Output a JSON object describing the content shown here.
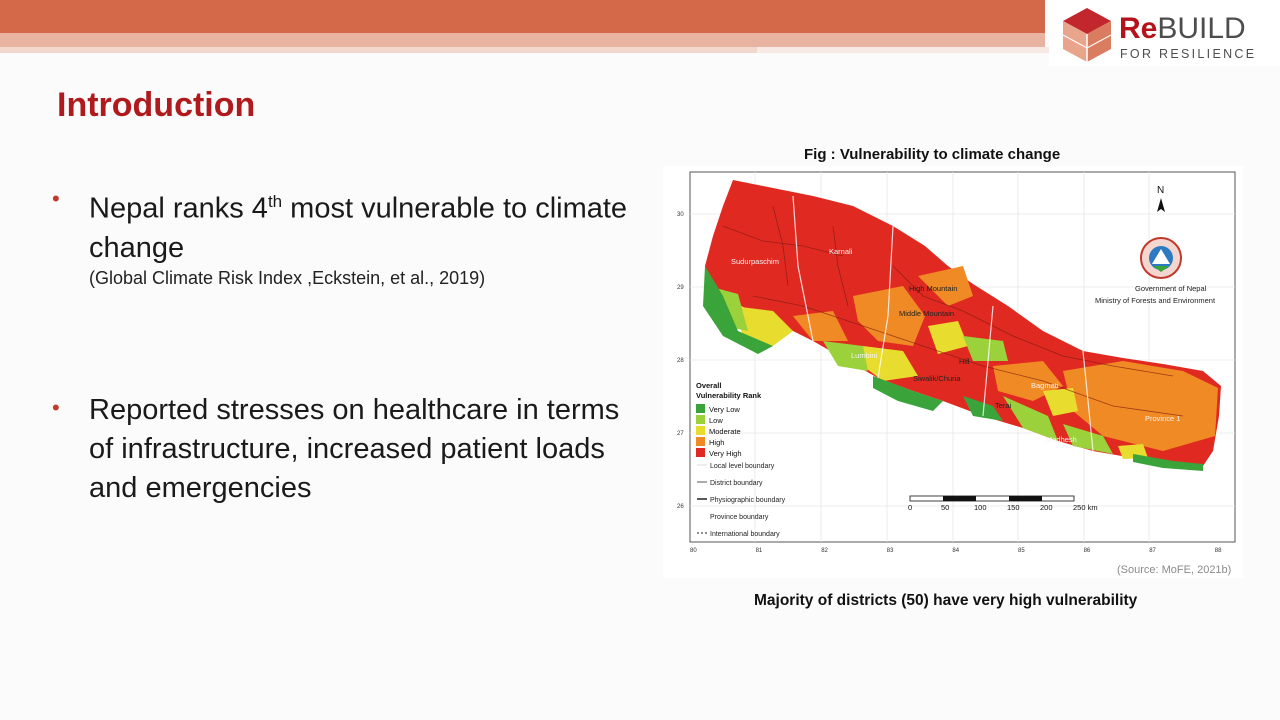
{
  "logo": {
    "re": "Re",
    "build": "BUILD",
    "sub": "FOR RESILIENCE"
  },
  "title": "Introduction",
  "bullets": [
    {
      "text_pre": "Nepal ranks 4",
      "sup": "th",
      "text_post": " most vulnerable to climate change",
      "sub": "(Global Climate Risk Index ,Eckstein, et al., 2019)"
    },
    {
      "text": "Reported stresses on healthcare in terms of infrastructure, increased patient loads and emergencies"
    }
  ],
  "figure": {
    "caption": "Fig : Vulnerability to  climate change",
    "source": "(Source: MoFE, 2021b)",
    "bottom_caption": "Majority of districts (50) have very high vulnerability",
    "north": "N",
    "gov_line1": "Government of Nepal",
    "gov_line2": "Ministry of Forests and Environment",
    "legend_title1": "Overall",
    "legend_title2": "Vulnerability Rank",
    "legend": [
      {
        "label": "Very Low",
        "color": "#3aa33a"
      },
      {
        "label": "Low",
        "color": "#9bd13a"
      },
      {
        "label": "Moderate",
        "color": "#e8dc2e"
      },
      {
        "label": "High",
        "color": "#f08a24"
      },
      {
        "label": "Very High",
        "color": "#e02a21"
      }
    ],
    "boundaries": [
      "Local level boundary",
      "District boundary",
      "Physiographic boundary",
      "Province boundary",
      "International boundary"
    ],
    "scale_labels": [
      "0",
      "50",
      "100",
      "150",
      "200",
      "250 km"
    ],
    "lat_labels": [
      "30",
      "29",
      "28",
      "27",
      "26"
    ],
    "lon_labels": [
      "80",
      "81",
      "82",
      "83",
      "84",
      "85",
      "86",
      "87",
      "88"
    ],
    "regions": [
      "Sudurpaschim",
      "Karnali",
      "High Mountain",
      "Middle Mountain",
      "Lumbini",
      "Hill",
      "Siwalik/Churia",
      "Bagmati",
      "Terai",
      "Province 1",
      "Madhesh"
    ]
  }
}
